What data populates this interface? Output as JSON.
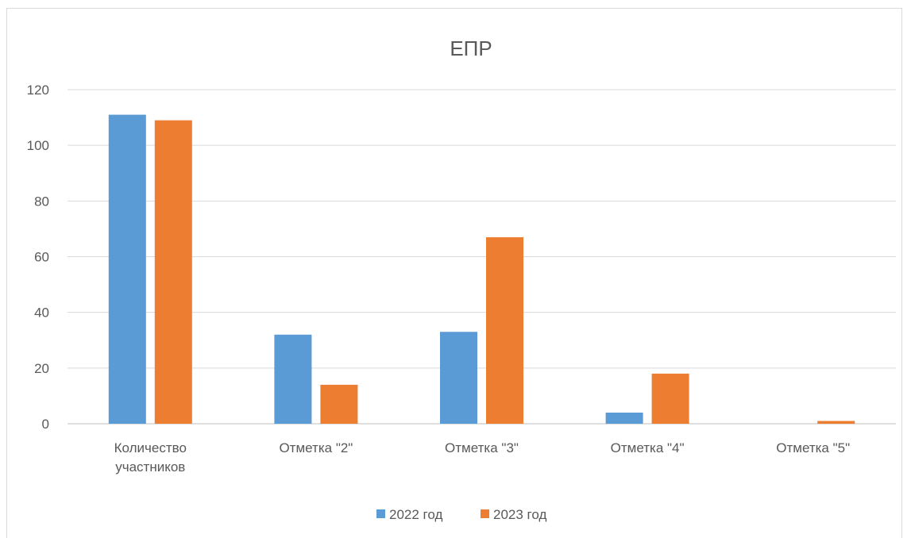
{
  "chart_data": {
    "type": "bar",
    "title": "ЕПР",
    "xlabel": "",
    "ylabel": "",
    "ylim": [
      0,
      120
    ],
    "yticks": [
      0,
      20,
      40,
      60,
      80,
      100,
      120
    ],
    "categories": [
      [
        "Количество",
        "участников"
      ],
      [
        "Отметка \"2\""
      ],
      [
        "Отметка \"3\""
      ],
      [
        "Отметка \"4\""
      ],
      [
        "Отметка \"5\""
      ]
    ],
    "series": [
      {
        "name": "2022 год",
        "color": "#5b9bd5",
        "values": [
          111,
          32,
          33,
          4,
          0
        ]
      },
      {
        "name": "2023 год",
        "color": "#ed7d31",
        "values": [
          109,
          14,
          67,
          18,
          1
        ]
      }
    ],
    "grid": true,
    "legend": "bottom"
  }
}
